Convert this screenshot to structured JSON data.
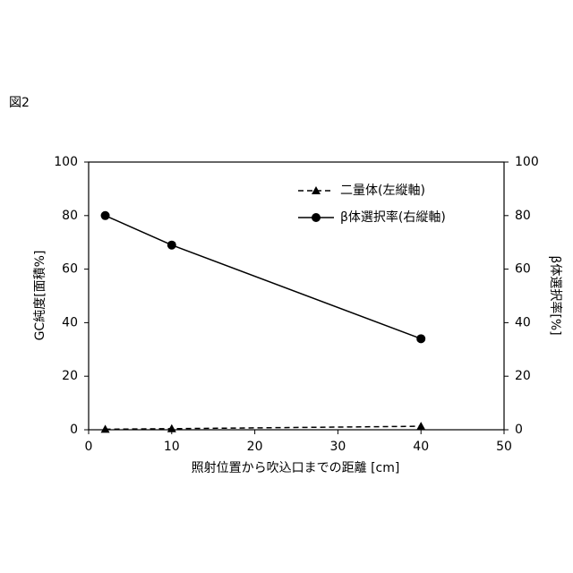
{
  "figure_label": "図2",
  "chart_data": {
    "type": "line",
    "xlabel": "照射位置から吹込口までの距離 [cm]",
    "ylabel": "GC純度[面積%]",
    "y2label": "β体選択率[%]",
    "x": [
      2,
      10,
      40
    ],
    "series": [
      {
        "name": "二量体(左縦軸)",
        "color": "#000000",
        "line_style": "dashed",
        "marker": "triangle",
        "values": [
          0.2,
          0.4,
          1.3
        ]
      },
      {
        "name": "β体選択率(右縦軸)",
        "color": "#000000",
        "line_style": "solid",
        "marker": "circle",
        "axis": "y2",
        "values": [
          80,
          69,
          34
        ]
      }
    ],
    "xlim": [
      0,
      50
    ],
    "xticks": [
      0,
      10,
      20,
      30,
      40,
      50
    ],
    "ylim": [
      0,
      100
    ],
    "yticks": [
      0,
      20,
      40,
      60,
      80,
      100
    ],
    "y2lim": [
      0,
      100
    ],
    "y2ticks": [
      0,
      20,
      40,
      60,
      80,
      100
    ],
    "legend": "upper right",
    "grid": false
  }
}
